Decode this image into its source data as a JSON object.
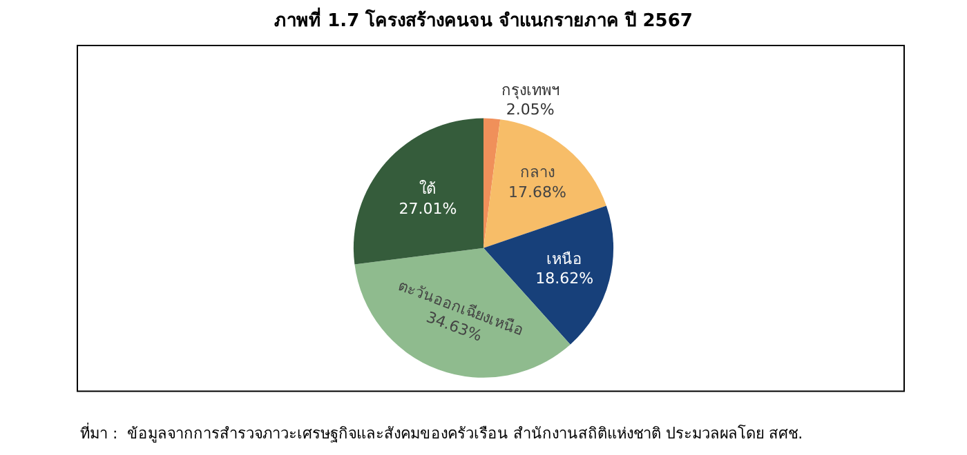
{
  "chart_data": {
    "type": "pie",
    "title": "ภาพที่ 1.7 โครงสร้างคนจน จำแนกรายภาค ปี 2567",
    "categories": [
      "กรุงเทพฯ",
      "กลาง",
      "เหนือ",
      "ตะวันออกเฉียงเหนือ",
      "ใต้"
    ],
    "values": [
      2.05,
      17.68,
      18.62,
      34.63,
      27.01
    ],
    "value_labels": [
      "2.05%",
      "17.68%",
      "18.62%",
      "34.63%",
      "27.01%"
    ],
    "colors": [
      "#f0905a",
      "#f7bd68",
      "#17407a",
      "#8fbb8e",
      "#355c3b"
    ],
    "annotations": [
      "ที่มา :  ข้อมูลจากการสำรวจภาวะเศรษฐกิจและสังคมของครัวเรือน สำนักงานสถิติแห่งชาติ ประมวลผลโดย สศช."
    ],
    "legend": false
  }
}
